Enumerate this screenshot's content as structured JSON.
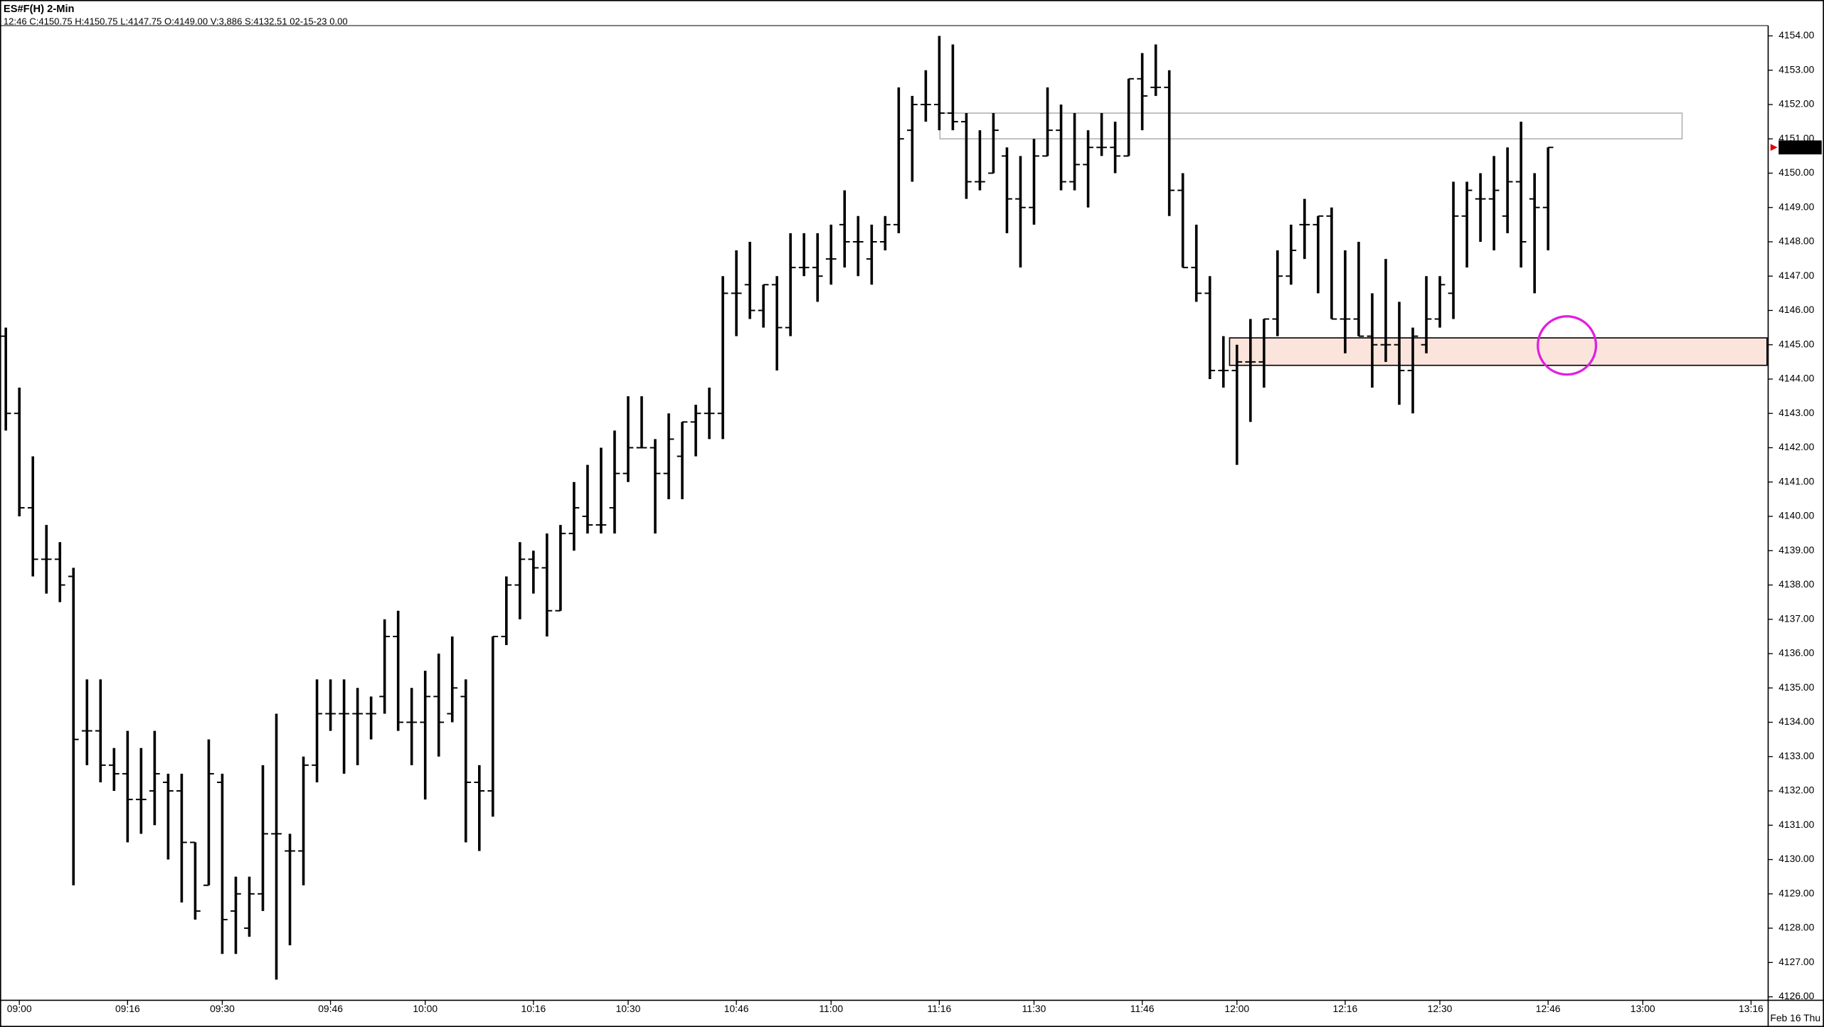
{
  "chart_data": {
    "type": "ohlc",
    "title": "ES#F(H) 2-Min",
    "subtitle": "12:46  C:4150.75  H:4150.75  L:4147.75  O:4149.00  V:3,886  S:4132.51  02-15-23  0.00",
    "date_label": "Feb 16 Thu",
    "color": "#000000",
    "last_price_color": "#e00000",
    "categories": [
      null,
      "09:00",
      null,
      null,
      null,
      null,
      null,
      null,
      null,
      "09:16",
      null,
      null,
      null,
      null,
      null,
      null,
      "09:30",
      null,
      null,
      null,
      null,
      null,
      null,
      null,
      "09:46",
      null,
      null,
      null,
      null,
      null,
      null,
      "10:00",
      null,
      null,
      null,
      null,
      null,
      null,
      null,
      "10:16",
      null,
      null,
      null,
      null,
      null,
      null,
      "10:30",
      null,
      null,
      null,
      null,
      null,
      null,
      null,
      "10:46",
      null,
      null,
      null,
      null,
      null,
      null,
      "11:00",
      null,
      null,
      null,
      null,
      null,
      null,
      null,
      "11:16",
      null,
      null,
      null,
      null,
      null,
      null,
      "11:30",
      null,
      null,
      null,
      null,
      null,
      null,
      null,
      "11:46",
      null,
      null,
      null,
      null,
      null,
      null,
      "12:00",
      null,
      null,
      null,
      null,
      null,
      null,
      null,
      "12:16",
      null,
      null,
      null,
      null,
      null,
      null,
      "12:30",
      null,
      null,
      null,
      null,
      null,
      null,
      null,
      "12:46",
      null,
      null,
      null,
      null,
      null,
      null,
      "13:00",
      null,
      null,
      null,
      null,
      null,
      null,
      null,
      "13:16",
      null
    ],
    "open": [
      4145.25,
      4143,
      4140.25,
      4138.75,
      4138.75,
      4138.25,
      4133.75,
      4133.75,
      4132.75,
      4132.5,
      4131.75,
      4132,
      4132.25,
      4132,
      4130.5,
      4129.25,
      4132.25,
      4128.5,
      4128,
      4129,
      4130.75,
      4130.25,
      4130.25,
      4132.75,
      4134.25,
      4134.25,
      4134.25,
      4134.25,
      4134.75,
      4136.5,
      4134,
      4134,
      4134.75,
      4134.25,
      4134.75,
      4132.25,
      4132,
      4136.5,
      4138,
      4138.75,
      4138.5,
      4137.25,
      4139.5,
      4140,
      4139.75,
      4140.25,
      4141.25,
      4142,
      4142,
      4141.25,
      4141.75,
      4142.75,
      4143,
      4143,
      4146.5,
      4146.75,
      4146,
      4146.75,
      4145.5,
      4147.25,
      4147.25,
      4147.5,
      4148.5,
      4148,
      4147.5,
      4148,
      4148.5,
      4151.25,
      4152,
      4152,
      4151.75,
      4151.5,
      4149.75,
      4150,
      4150.5,
      4149.25,
      4149,
      4150.5,
      4151.25,
      4149.75,
      4150.25,
      4150.75,
      4150.75,
      4150.5,
      4152.75,
      4152.5,
      4152.5,
      4149.5,
      4147.25,
      4146.5,
      4144.25,
      4144.25,
      4144.5,
      4144.5,
      4145.75,
      4147,
      4148.5,
      4148.5,
      4148.75,
      4145.75,
      4145.75,
      4145.25,
      4145,
      4145,
      4144.25,
      4145,
      4145.75,
      4146.5,
      4148.75,
      4149.25,
      4149.25,
      4148.75,
      4149.75,
      4149.25,
      4149,
      null,
      null,
      null,
      null,
      null,
      null,
      null,
      null,
      null,
      null,
      null,
      null,
      null,
      null,
      null,
      null
    ],
    "high": [
      4145.5,
      4143.75,
      4141.75,
      4139.75,
      4139.25,
      4138.5,
      4135.25,
      4135.25,
      4133.25,
      4133.75,
      4133.25,
      4133.75,
      4132.5,
      4132.5,
      4130.5,
      4133.5,
      4132.5,
      4129.5,
      4129.5,
      4132.75,
      4134.25,
      4130.75,
      4133,
      4135.25,
      4135.25,
      4135.25,
      4135,
      4134.75,
      4137,
      4137.25,
      4135,
      4135.5,
      4136,
      4136.5,
      4135.25,
      4132.75,
      4136.5,
      4138.25,
      4139.25,
      4139,
      4139.5,
      4139.75,
      4141,
      4141.5,
      4142,
      4142.5,
      4143.5,
      4143.5,
      4142.25,
      4143,
      4142.75,
      4143.25,
      4143.75,
      4147,
      4147.75,
      4148,
      4146.75,
      4147,
      4148.25,
      4148.25,
      4148.25,
      4148.5,
      4149.5,
      4148.75,
      4148.5,
      4148.75,
      4152.5,
      4152.25,
      4153,
      4154,
      4153.75,
      4151.75,
      4151.25,
      4151.75,
      4150.75,
      4150.5,
      4151,
      4152.5,
      4152,
      4151.75,
      4151.25,
      4151.75,
      4151.5,
      4152.75,
      4153.5,
      4153.75,
      4153,
      4150,
      4148.5,
      4147,
      4145.25,
      4145,
      4145.75,
      4145.75,
      4147.75,
      4148.5,
      4149.25,
      4148.75,
      4149,
      4147.75,
      4148,
      4146.5,
      4147.5,
      4146.25,
      4145.5,
      4147,
      4147,
      4149.75,
      4149.75,
      4150,
      4150.5,
      4150.75,
      4151.5,
      4150,
      4150.75,
      null,
      null,
      null,
      null,
      null,
      null,
      null,
      null,
      null,
      null,
      null,
      null,
      null,
      null,
      null,
      null
    ],
    "low": [
      4142.5,
      4140,
      4138.25,
      4137.75,
      4137.5,
      4129.25,
      4132.75,
      4132.25,
      4132,
      4130.5,
      4130.75,
      4131,
      4130,
      4128.75,
      4128.25,
      4129.25,
      4127.25,
      4127.25,
      4127.75,
      4128.5,
      4126.5,
      4127.5,
      4129.25,
      4132.25,
      4133.75,
      4132.5,
      4132.75,
      4133.5,
      4134.25,
      4133.75,
      4132.75,
      4131.75,
      4133,
      4134,
      4130.5,
      4130.25,
      4131.25,
      4136.25,
      4137,
      4137.75,
      4136.5,
      4137.25,
      4139,
      4139.5,
      4139.5,
      4139.5,
      4141,
      4142,
      4139.5,
      4140.5,
      4140.5,
      4141.75,
      4142.25,
      4142.25,
      4145.25,
      4145.75,
      4145.5,
      4144.25,
      4145.25,
      4147,
      4146.25,
      4146.75,
      4147.25,
      4147,
      4146.75,
      4147.75,
      4148.25,
      4149.75,
      4151.5,
      4151.25,
      4151.25,
      4149.25,
      4149.5,
      4150,
      4148.25,
      4147.25,
      4148.5,
      4150.5,
      4149.5,
      4149.5,
      4149,
      4150.5,
      4150,
      4150.5,
      4151.25,
      4152.25,
      4148.75,
      4147.25,
      4146.25,
      4144,
      4143.75,
      4141.5,
      4142.75,
      4143.75,
      4145.25,
      4146.75,
      4147.5,
      4146.5,
      4145.75,
      4144.75,
      4145.25,
      4143.75,
      4144.5,
      4143.25,
      4143,
      4144.75,
      4145.5,
      4145.75,
      4147.25,
      4148,
      4147.75,
      4148.25,
      4147.25,
      4146.5,
      4147.75,
      null,
      null,
      null,
      null,
      null,
      null,
      null,
      null,
      null,
      null,
      null,
      null,
      null,
      null,
      null,
      null
    ],
    "close": [
      4143,
      4140.25,
      4138.75,
      4138.75,
      4138,
      4133.5,
      4133.75,
      4132.75,
      4132.5,
      4131.75,
      4131.75,
      4132.5,
      4132,
      4130.5,
      4128.5,
      4132.5,
      4128.25,
      4129,
      4129,
      4130.75,
      4130.75,
      4130.25,
      4132.75,
      4134.25,
      4134.25,
      4134.25,
      4134.25,
      4134.25,
      4136.5,
      4134,
      4134,
      4134.75,
      4134,
      4135,
      4132.25,
      4132,
      4136.5,
      4138,
      4138.75,
      4138.5,
      4137.25,
      4139.5,
      4140.25,
      4139.75,
      4139.75,
      4141.25,
      4142,
      4142,
      4141.25,
      4142.25,
      4142.75,
      4143,
      4143,
      4146.5,
      4146.5,
      4146,
      4146.75,
      4145.5,
      4147.25,
      4147.25,
      4147,
      4147.5,
      4148,
      4148,
      4148,
      4148.5,
      4151,
      4152,
      4152,
      4151.75,
      4151.5,
      4149.75,
      4149.75,
      4151.25,
      4149.25,
      4149,
      4150.5,
      4151.25,
      4149.75,
      4150.25,
      4150.75,
      4150.75,
      4150.5,
      4152.75,
      4152.25,
      4152.5,
      4149.5,
      4147.25,
      4146.5,
      4144.25,
      4144.25,
      4144.5,
      4144.5,
      4145.75,
      4147,
      4147.75,
      4148.5,
      4148.75,
      4145.75,
      4145.75,
      4145.25,
      4145,
      4145,
      4144.25,
      4145.25,
      4145.75,
      4146.75,
      4148.75,
      4149.5,
      4149.25,
      4149.5,
      4149.75,
      4148,
      4149,
      4150.75,
      null,
      null,
      null,
      null,
      null,
      null,
      null,
      null,
      null,
      null,
      null,
      null,
      null,
      null,
      null,
      null
    ],
    "ylim": [
      4125.9,
      4154.3
    ],
    "yticks": [
      {
        "value": 4126,
        "label": "4126.00"
      },
      {
        "value": 4127,
        "label": "4127.00"
      },
      {
        "value": 4128,
        "label": "4128.00"
      },
      {
        "value": 4129,
        "label": "4129.00"
      },
      {
        "value": 4130,
        "label": "4130.00"
      },
      {
        "value": 4131,
        "label": "4131.00"
      },
      {
        "value": 4132,
        "label": "4132.00"
      },
      {
        "value": 4133,
        "label": "4133.00"
      },
      {
        "value": 4134,
        "label": "4134.00"
      },
      {
        "value": 4135,
        "label": "4135.00"
      },
      {
        "value": 4136,
        "label": "4136.00"
      },
      {
        "value": 4137,
        "label": "4137.00"
      },
      {
        "value": 4138,
        "label": "4138.00"
      },
      {
        "value": 4139,
        "label": "4139.00"
      },
      {
        "value": 4140,
        "label": "4140.00"
      },
      {
        "value": 4141,
        "label": "4141.00"
      },
      {
        "value": 4142,
        "label": "4142.00"
      },
      {
        "value": 4143,
        "label": "4143.00"
      },
      {
        "value": 4144,
        "label": "4144.00"
      },
      {
        "value": 4145,
        "label": "4145.00"
      },
      {
        "value": 4146,
        "label": "4146.00"
      },
      {
        "value": 4147,
        "label": "4147.00"
      },
      {
        "value": 4148,
        "label": "4148.00"
      },
      {
        "value": 4149,
        "label": "4149.00"
      },
      {
        "value": 4150,
        "label": "4150.00"
      },
      {
        "value": 4151,
        "label": "4151.00"
      },
      {
        "value": 4152,
        "label": "4152.00"
      },
      {
        "value": 4153,
        "label": "4153.00"
      },
      {
        "value": 4154,
        "label": "4154.00"
      }
    ],
    "zones": [
      {
        "ylim": [
          4151.0,
          4151.75
        ],
        "fill": "#ffffff",
        "stroke": "#b4b4b4"
      },
      {
        "ylim": [
          4144.4,
          4145.2
        ],
        "fill": "#fbe4dc",
        "stroke": "#000000"
      }
    ]
  }
}
